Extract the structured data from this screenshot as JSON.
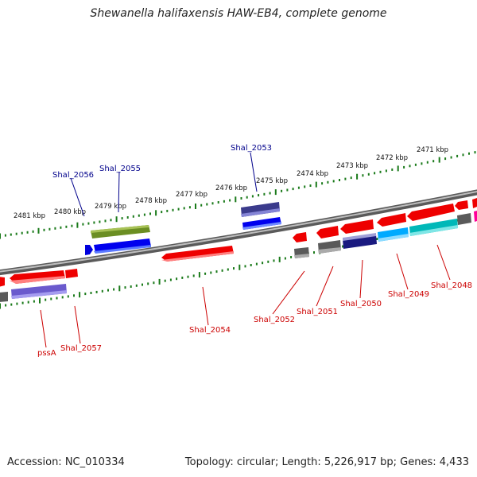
{
  "title": "Shewanella halifaxensis HAW-EB4, complete genome",
  "footer": {
    "accession": "Accession: NC_010334",
    "topology": "Topology: circular; Length: 5,226,917 bp; Genes: 4,433"
  },
  "colors": {
    "backbone": "#808080",
    "ruler_ticks": "#1a7a1a",
    "forward_label": "#00008b",
    "reverse_label": "#cc0000"
  },
  "ruler_labels": [
    "2481 kbp",
    "2480 kbp",
    "2479 kbp",
    "2478 kbp",
    "2477 kbp",
    "2476 kbp",
    "2475 kbp",
    "2474 kbp",
    "2473 kbp",
    "2472 kbp",
    "2471 kbp"
  ],
  "gene_labels": {
    "forward": [
      "Shal_2056",
      "Shal_2055",
      "Shal_2053"
    ],
    "reverse": [
      "pssA",
      "Shal_2057",
      "Shal_2054",
      "Shal_2052",
      "Shal_2051",
      "Shal_2050",
      "Shal_2049",
      "Shal_2048"
    ]
  }
}
